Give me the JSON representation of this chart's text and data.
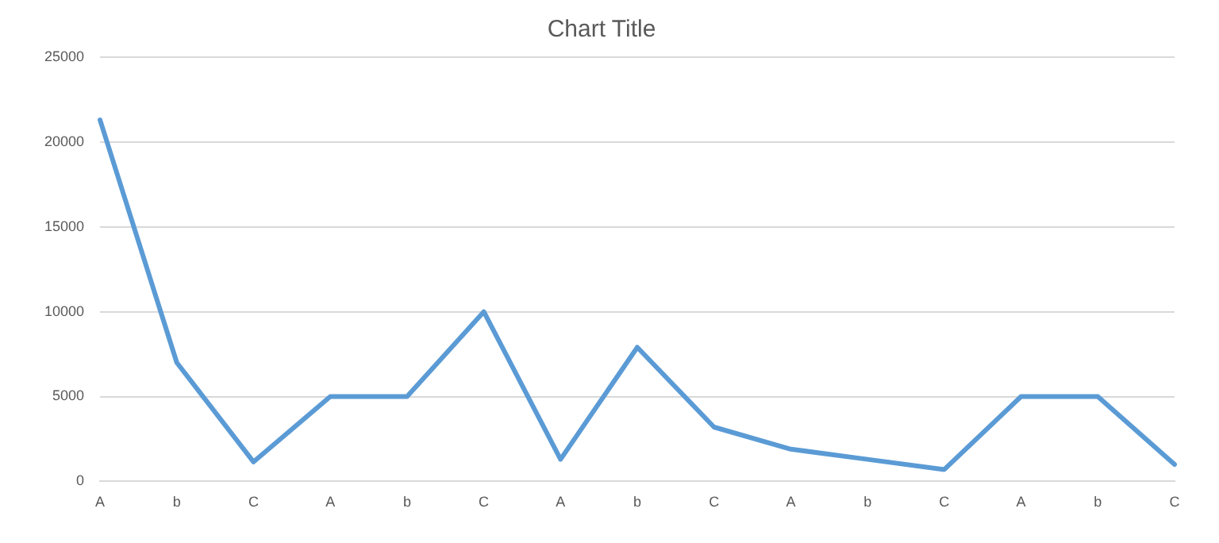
{
  "chart_data": {
    "type": "line",
    "title": "Chart Title",
    "categories": [
      "A",
      "b",
      "C",
      "A",
      "b",
      "C",
      "A",
      "b",
      "C",
      "A",
      "b",
      "C",
      "A",
      "b",
      "C"
    ],
    "series": [
      {
        "color": "#5b9bd5",
        "values": [
          21300,
          7000,
          1150,
          5000,
          5000,
          10000,
          1300,
          7900,
          3200,
          1900,
          1300,
          700,
          5000,
          5000,
          1000
        ]
      }
    ],
    "ylim": [
      0,
      25000
    ],
    "yticks": [
      0,
      5000,
      10000,
      15000,
      20000,
      25000
    ],
    "grid": "y",
    "legend": false,
    "marker": "none",
    "line_style": "solid"
  }
}
